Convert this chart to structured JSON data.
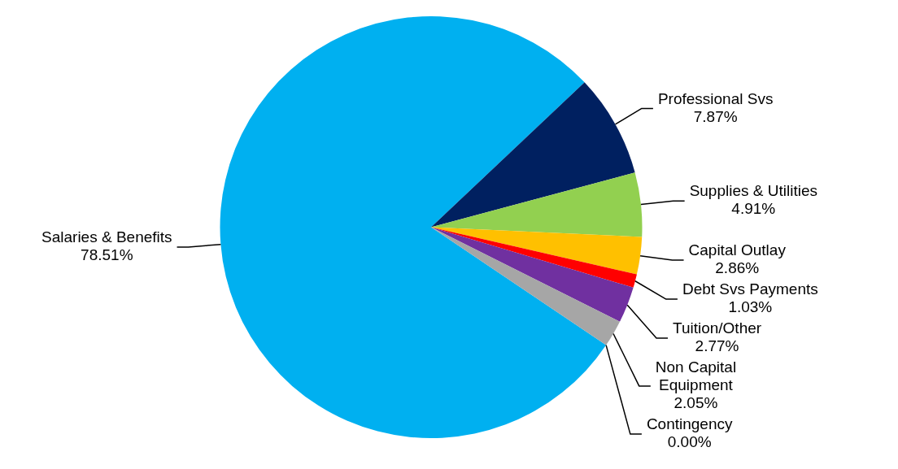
{
  "chart_data": {
    "type": "pie",
    "categories": [
      "Salaries & Benefits",
      "Professional Svs",
      "Supplies & Utilities",
      "Capital Outlay",
      "Debt Svs Payments",
      "Tuition/Other",
      "Non Capital Equipment",
      "Contingency"
    ],
    "values": [
      78.51,
      7.87,
      4.91,
      2.86,
      1.03,
      2.77,
      2.05,
      0.0
    ],
    "colors": [
      "#00b0f0",
      "#002060",
      "#92d050",
      "#ffc000",
      "#ff0000",
      "#7030a0",
      "#a6a6a6",
      "#1f1f1f"
    ],
    "value_labels": [
      "78.51%",
      "7.87%",
      "4.91%",
      "2.86%",
      "1.03%",
      "2.77%",
      "2.05%",
      "0.00%"
    ],
    "legend": false
  }
}
